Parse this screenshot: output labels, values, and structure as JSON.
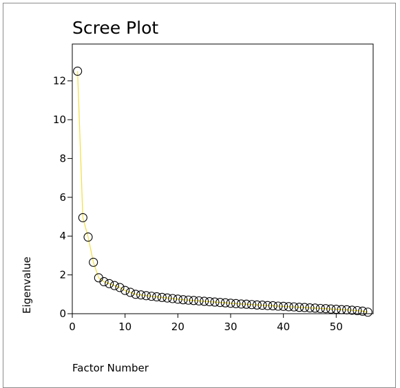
{
  "chart_data": {
    "type": "line",
    "title": "Scree Plot",
    "xlabel": "Factor Number",
    "ylabel": "Eigenvalue",
    "xlim": [
      0,
      57
    ],
    "ylim": [
      0,
      13.9
    ],
    "xticks": [
      0,
      10,
      20,
      30,
      40,
      50
    ],
    "yticks": [
      0,
      2,
      4,
      6,
      8,
      10,
      12
    ],
    "grid": false,
    "series": [
      {
        "line_color": "#f2e04a",
        "marker": "open-circle",
        "marker_color": "#000000",
        "x": [
          1,
          2,
          3,
          4,
          5,
          6,
          7,
          8,
          9,
          10,
          11,
          12,
          13,
          14,
          15,
          16,
          17,
          18,
          19,
          20,
          21,
          22,
          23,
          24,
          25,
          26,
          27,
          28,
          29,
          30,
          31,
          32,
          33,
          34,
          35,
          36,
          37,
          38,
          39,
          40,
          41,
          42,
          43,
          44,
          45,
          46,
          47,
          48,
          49,
          50,
          51,
          52,
          53,
          54,
          55,
          56
        ],
        "y": [
          12.5,
          4.95,
          3.95,
          2.65,
          1.85,
          1.65,
          1.55,
          1.45,
          1.35,
          1.2,
          1.1,
          1.0,
          0.97,
          0.93,
          0.9,
          0.87,
          0.84,
          0.81,
          0.78,
          0.75,
          0.72,
          0.7,
          0.68,
          0.66,
          0.64,
          0.62,
          0.6,
          0.58,
          0.56,
          0.54,
          0.52,
          0.5,
          0.49,
          0.47,
          0.45,
          0.44,
          0.42,
          0.41,
          0.39,
          0.38,
          0.36,
          0.35,
          0.33,
          0.32,
          0.3,
          0.29,
          0.27,
          0.26,
          0.24,
          0.23,
          0.21,
          0.2,
          0.18,
          0.16,
          0.13,
          0.08
        ]
      }
    ]
  }
}
